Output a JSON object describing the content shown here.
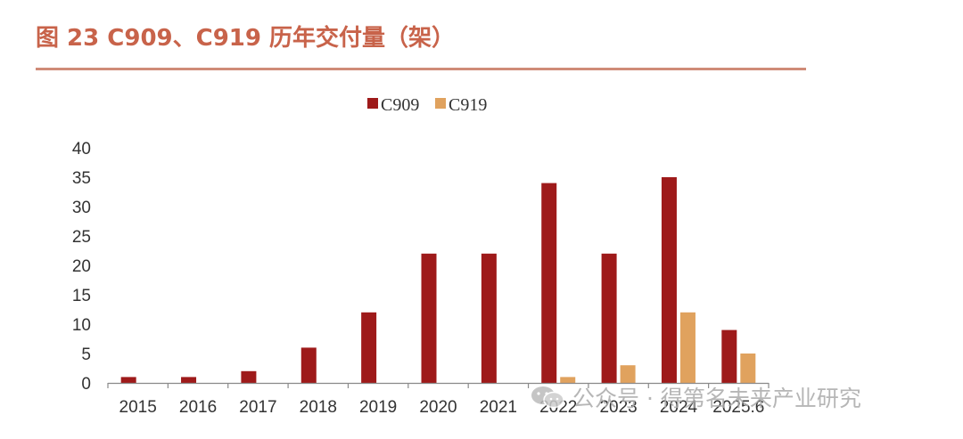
{
  "title": "图 23 C909、C919 历年交付量（架）",
  "chart_data": {
    "type": "bar",
    "title": "图 23 C909、C919 历年交付量（架）",
    "categories": [
      "2015",
      "2016",
      "2017",
      "2018",
      "2019",
      "2020",
      "2021",
      "2022",
      "2023",
      "2024",
      "2025.6"
    ],
    "series": [
      {
        "name": "C909",
        "color": "#9e1a1a",
        "values": [
          1,
          1,
          2,
          6,
          12,
          22,
          22,
          34,
          22,
          35,
          9
        ]
      },
      {
        "name": "C919",
        "color": "#e0a25e",
        "values": [
          0,
          0,
          0,
          0,
          0,
          0,
          0,
          1,
          3,
          12,
          5
        ]
      }
    ],
    "ylim": [
      0,
      40
    ],
    "yticks": [
      0,
      5,
      10,
      15,
      20,
      25,
      30,
      35,
      40
    ],
    "xlabel": "",
    "ylabel": "",
    "legend": "top-center",
    "grid": false
  },
  "watermark": {
    "text": "公众号 · 得第名未来产业研究",
    "icon": "wechat-icon"
  }
}
